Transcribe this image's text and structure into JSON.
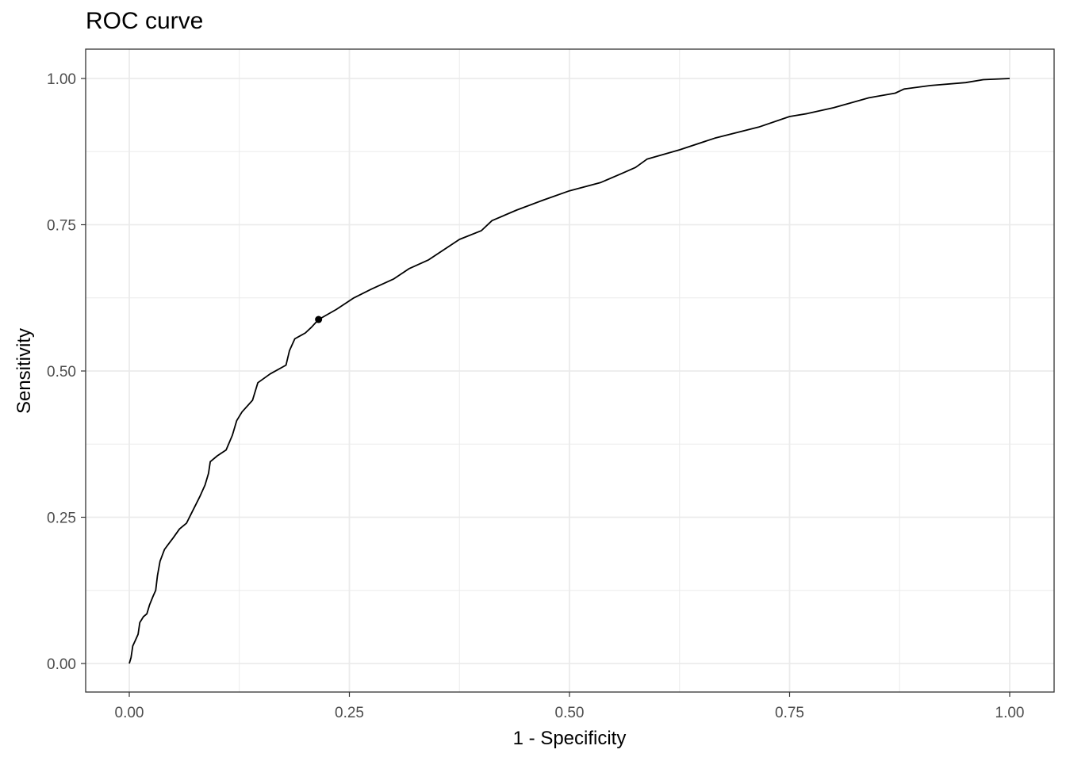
{
  "chart_data": {
    "type": "line",
    "title": "ROC curve",
    "xlabel": "1 - Specificity",
    "ylabel": "Sensitivity",
    "xlim": [
      0,
      1
    ],
    "ylim": [
      0,
      1
    ],
    "x_ticks": [
      0,
      0.25,
      0.5,
      0.75,
      1
    ],
    "y_ticks": [
      0,
      0.25,
      0.5,
      0.75,
      1
    ],
    "x_tick_labels": [
      "0.00",
      "0.25",
      "0.50",
      "0.75",
      "1.00"
    ],
    "y_tick_labels": [
      "0.00",
      "0.25",
      "0.50",
      "0.75",
      "1.00"
    ],
    "grid": true,
    "colors": {
      "line": "#000000",
      "grid": "#ebebeb",
      "panel_border": "#333333",
      "tick_text": "#4d4d4d"
    },
    "series": [
      {
        "points": [
          [
            0.0,
            0.0
          ],
          [
            0.002,
            0.01
          ],
          [
            0.004,
            0.03
          ],
          [
            0.007,
            0.04
          ],
          [
            0.01,
            0.05
          ],
          [
            0.012,
            0.07
          ],
          [
            0.016,
            0.08
          ],
          [
            0.02,
            0.085
          ],
          [
            0.023,
            0.1
          ],
          [
            0.027,
            0.115
          ],
          [
            0.03,
            0.125
          ],
          [
            0.032,
            0.15
          ],
          [
            0.035,
            0.175
          ],
          [
            0.04,
            0.195
          ],
          [
            0.045,
            0.205
          ],
          [
            0.05,
            0.215
          ],
          [
            0.057,
            0.23
          ],
          [
            0.065,
            0.24
          ],
          [
            0.07,
            0.255
          ],
          [
            0.075,
            0.27
          ],
          [
            0.08,
            0.285
          ],
          [
            0.086,
            0.305
          ],
          [
            0.09,
            0.325
          ],
          [
            0.092,
            0.345
          ],
          [
            0.1,
            0.355
          ],
          [
            0.11,
            0.365
          ],
          [
            0.117,
            0.39
          ],
          [
            0.122,
            0.415
          ],
          [
            0.128,
            0.43
          ],
          [
            0.14,
            0.45
          ],
          [
            0.146,
            0.48
          ],
          [
            0.16,
            0.495
          ],
          [
            0.178,
            0.51
          ],
          [
            0.182,
            0.535
          ],
          [
            0.188,
            0.555
          ],
          [
            0.2,
            0.565
          ],
          [
            0.207,
            0.575
          ],
          [
            0.215,
            0.588
          ],
          [
            0.235,
            0.605
          ],
          [
            0.255,
            0.625
          ],
          [
            0.275,
            0.64
          ],
          [
            0.3,
            0.657
          ],
          [
            0.318,
            0.675
          ],
          [
            0.34,
            0.69
          ],
          [
            0.355,
            0.705
          ],
          [
            0.375,
            0.725
          ],
          [
            0.4,
            0.74
          ],
          [
            0.412,
            0.757
          ],
          [
            0.44,
            0.775
          ],
          [
            0.47,
            0.792
          ],
          [
            0.5,
            0.808
          ],
          [
            0.535,
            0.822
          ],
          [
            0.56,
            0.838
          ],
          [
            0.575,
            0.848
          ],
          [
            0.588,
            0.862
          ],
          [
            0.625,
            0.878
          ],
          [
            0.665,
            0.898
          ],
          [
            0.715,
            0.917
          ],
          [
            0.75,
            0.935
          ],
          [
            0.77,
            0.94
          ],
          [
            0.8,
            0.95
          ],
          [
            0.84,
            0.967
          ],
          [
            0.87,
            0.975
          ],
          [
            0.88,
            0.982
          ],
          [
            0.91,
            0.988
          ],
          [
            0.95,
            0.993
          ],
          [
            0.97,
            0.998
          ],
          [
            1.0,
            1.0
          ]
        ],
        "marker": [
          0.215,
          0.588
        ]
      }
    ]
  }
}
